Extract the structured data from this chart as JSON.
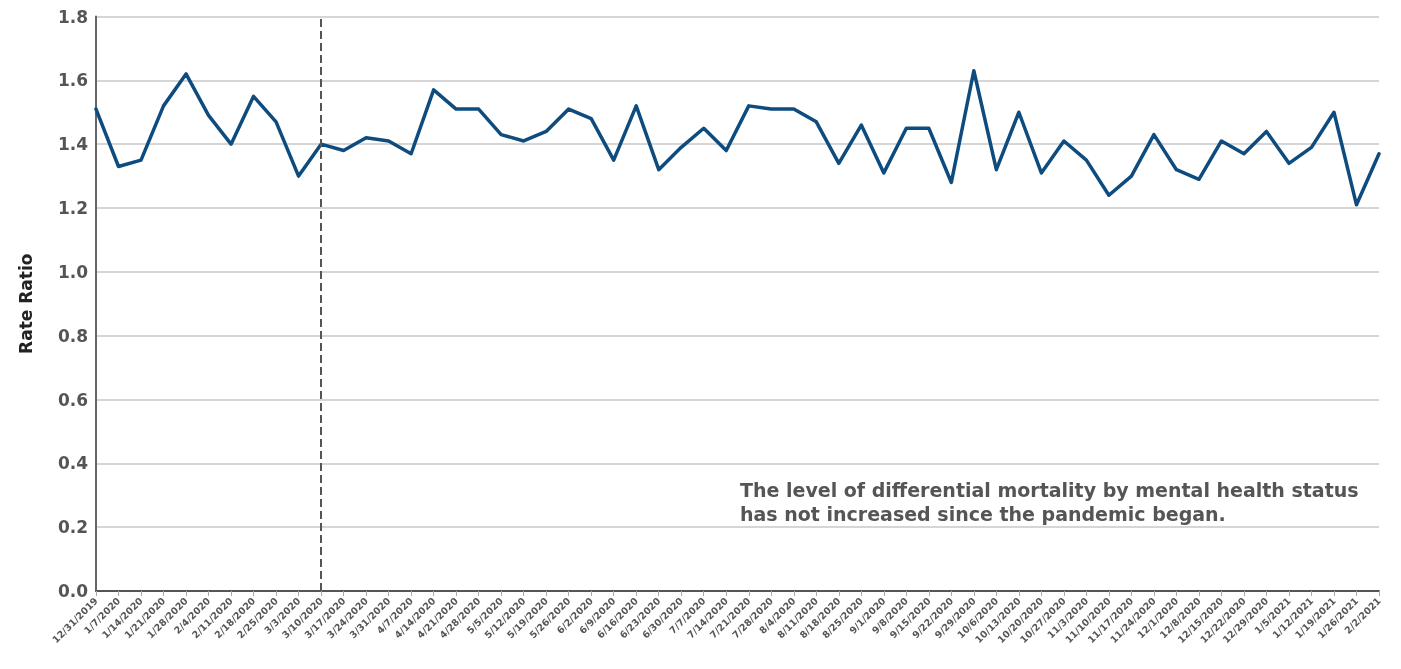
{
  "chart_data": {
    "type": "line",
    "ylabel": "Rate Ratio",
    "categories": [
      "12/31/2019",
      "1/7/2020",
      "1/14/2020",
      "1/21/2020",
      "1/28/2020",
      "2/4/2020",
      "2/11/2020",
      "2/18/2020",
      "2/25/2020",
      "3/3/2020",
      "3/10/2020",
      "3/17/2020",
      "3/24/2020",
      "3/31/2020",
      "4/7/2020",
      "4/14/2020",
      "4/21/2020",
      "4/28/2020",
      "5/5/2020",
      "5/12/2020",
      "5/19/2020",
      "5/26/2020",
      "6/2/2020",
      "6/9/2020",
      "6/16/2020",
      "6/23/2020",
      "6/30/2020",
      "7/7/2020",
      "7/14/2020",
      "7/21/2020",
      "7/28/2020",
      "8/4/2020",
      "8/11/2020",
      "8/18/2020",
      "8/25/2020",
      "9/1/2020",
      "9/8/2020",
      "9/15/2020",
      "9/22/2020",
      "9/29/2020",
      "10/6/2020",
      "10/13/2020",
      "10/20/2020",
      "10/27/2020",
      "11/3/2020",
      "11/10/2020",
      "11/17/2020",
      "11/24/2020",
      "12/1/2020",
      "12/8/2020",
      "12/15/2020",
      "12/22/2020",
      "12/29/2020",
      "1/5/2021",
      "1/12/2021",
      "1/19/2021",
      "1/26/2021",
      "2/2/2021"
    ],
    "series": [
      {
        "color": "#0e4c7f",
        "values": [
          1.51,
          1.33,
          1.35,
          1.52,
          1.62,
          1.49,
          1.4,
          1.55,
          1.47,
          1.3,
          1.4,
          1.38,
          1.42,
          1.41,
          1.37,
          1.57,
          1.51,
          1.51,
          1.43,
          1.41,
          1.44,
          1.51,
          1.48,
          1.35,
          1.52,
          1.32,
          1.39,
          1.45,
          1.38,
          1.52,
          1.51,
          1.51,
          1.47,
          1.34,
          1.46,
          1.31,
          1.45,
          1.45,
          1.28,
          1.63,
          1.32,
          1.5,
          1.31,
          1.41,
          1.35,
          1.24,
          1.3,
          1.43,
          1.32,
          1.29,
          1.41,
          1.37,
          1.44,
          1.34,
          1.39,
          1.5,
          1.21,
          1.37
        ]
      }
    ],
    "ylim": [
      0,
      1.8
    ],
    "yticks": [
      {
        "value": 0,
        "label": "0.0"
      },
      0.2,
      0.4,
      0.6,
      0.8,
      {
        "value": 1,
        "label": "1.0"
      },
      1.2,
      1.4,
      1.6,
      1.8
    ],
    "grid": "y",
    "marker": "none",
    "line_style": "solid",
    "ref_lines": [
      {
        "axis": "x",
        "value": "3/10/2020",
        "color": "#555555",
        "line_style": "dashed"
      }
    ],
    "annotations": [
      "The level of differential mortality by mental health status\nhas not increased since the pandemic began."
    ]
  }
}
